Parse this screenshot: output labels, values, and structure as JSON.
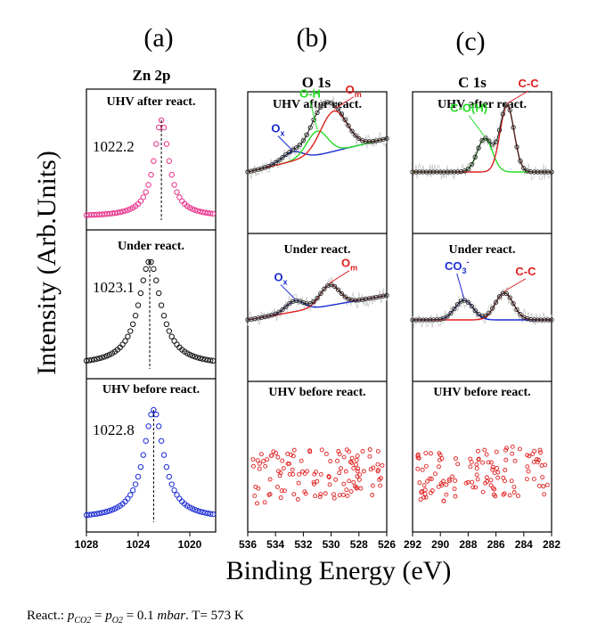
{
  "figure": {
    "ylabel": "Intensity (Arb.Units)",
    "xlabel": "Binding Energy (eV)",
    "footnote": "React.: pCO2 = pO2 = 0.1 mbar. T= 573  K",
    "footnote_parts": {
      "prefix": "React.: ",
      "p": "p",
      "co2": "CO2",
      "eq1": " = ",
      "o2": "O2",
      "eq2": " = 0.1 ",
      "unit": "mbar",
      "rest": ". T= 573  K"
    },
    "colors": {
      "pink": "#e8308a",
      "black": "#111111",
      "blue": "#1a2bd4",
      "red": "#e01e1e",
      "green": "#22dd22",
      "envelope": "#222222",
      "noise": "#c8c8c8"
    }
  },
  "chart_data": [
    {
      "id": "zn2p",
      "letter": "(a)",
      "title": "Zn 2p",
      "type": "scatter",
      "xlim": [
        1028,
        1018
      ],
      "xticks": [
        1028,
        1024,
        1020
      ],
      "panels": [
        {
          "label": "UHV after react.",
          "peak": 1022.2,
          "value_label": "1022.2",
          "color": "#e8308a",
          "width": 0.7
        },
        {
          "label": "Under react.",
          "peak": 1023.1,
          "value_label": "1023.1",
          "color": "#111111",
          "width": 1.05
        },
        {
          "label": "UHV before react.",
          "peak": 1022.8,
          "value_label": "1022.8",
          "color": "#1a2bd4",
          "width": 0.95
        }
      ]
    },
    {
      "id": "o1s",
      "letter": "(b)",
      "title": "O 1s",
      "type": "line",
      "xlim": [
        536,
        526
      ],
      "xticks": [
        536,
        534,
        532,
        530,
        528,
        526
      ],
      "panels": [
        {
          "label": "UHV after react.",
          "components": [
            {
              "name": "Ox",
              "base": "O",
              "sub": "x",
              "center": 532.8,
              "height": 0.14,
              "sigma": 0.75,
              "color": "#1a2bd4"
            },
            {
              "name": "O-H",
              "base": "O-H",
              "sub": "",
              "center": 531.0,
              "height": 0.36,
              "sigma": 0.75,
              "color": "#22dd22"
            },
            {
              "name": "Om",
              "base": "O",
              "sub": "m",
              "center": 529.8,
              "height": 0.6,
              "sigma": 0.95,
              "color": "#e01e1e"
            }
          ]
        },
        {
          "label": "Under react.",
          "components": [
            {
              "name": "Ox",
              "base": "O",
              "sub": "x",
              "center": 532.6,
              "height": 0.22,
              "sigma": 0.65,
              "color": "#1a2bd4"
            },
            {
              "name": "Om",
              "base": "O",
              "sub": "m",
              "center": 530.1,
              "height": 0.42,
              "sigma": 0.7,
              "color": "#e01e1e"
            }
          ]
        },
        {
          "label": "UHV before react.",
          "components": []
        }
      ]
    },
    {
      "id": "c1s",
      "letter": "(c)",
      "title": "C 1s",
      "type": "line",
      "xlim": [
        292,
        282
      ],
      "xticks": [
        292,
        290,
        288,
        286,
        284,
        282
      ],
      "panels": [
        {
          "label": "UHV after react.",
          "components": [
            {
              "name": "C-O(H)",
              "base": "C-O(H)",
              "sub": "",
              "center": 286.8,
              "height": 0.5,
              "sigma": 0.55,
              "color": "#22dd22"
            },
            {
              "name": "C-C",
              "base": "C-C",
              "sub": "",
              "center": 285.2,
              "height": 1.0,
              "sigma": 0.5,
              "color": "#e01e1e"
            }
          ]
        },
        {
          "label": "Under react.",
          "components": [
            {
              "name": "CO3-",
              "base": "CO",
              "sub": "3",
              "sup": "-",
              "center": 288.3,
              "height": 0.4,
              "sigma": 0.65,
              "color": "#1a2bd4"
            },
            {
              "name": "C-C",
              "base": "C-C",
              "sub": "",
              "center": 285.4,
              "height": 0.55,
              "sigma": 0.65,
              "color": "#e01e1e"
            }
          ]
        },
        {
          "label": "UHV before react.",
          "components": []
        }
      ]
    }
  ]
}
